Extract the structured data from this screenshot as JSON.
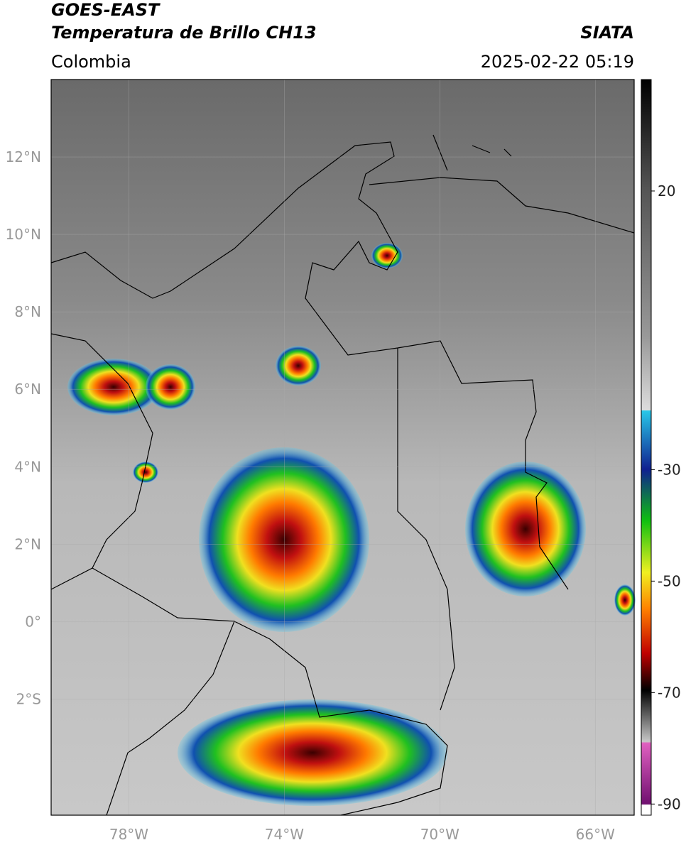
{
  "header": {
    "title": "GOES-EAST",
    "subtitle": "Temperatura de Brillo CH13",
    "source": "SIATA",
    "region": "Colombia",
    "timestamp": "2025-02-22 05:19"
  },
  "map": {
    "latlim": [
      -5,
      14
    ],
    "lonlim": [
      -80,
      -65
    ],
    "lat_ticks": [
      {
        "value": 12,
        "label": "12°N"
      },
      {
        "value": 10,
        "label": "10°N"
      },
      {
        "value": 8,
        "label": "8°N"
      },
      {
        "value": 6,
        "label": "6°N"
      },
      {
        "value": 4,
        "label": "4°N"
      },
      {
        "value": 2,
        "label": "2°N"
      },
      {
        "value": 0,
        "label": "0°"
      },
      {
        "value": -2,
        "label": "2°S"
      }
    ],
    "lon_ticks": [
      {
        "value": -78,
        "label": "78°W"
      },
      {
        "value": -74,
        "label": "74°W"
      },
      {
        "value": -70,
        "label": "70°W"
      },
      {
        "value": -66,
        "label": "66°W"
      }
    ]
  },
  "colorbar": {
    "lim": [
      -92,
      40
    ],
    "ticks": [
      20,
      -30,
      -50,
      -70,
      -90
    ]
  }
}
